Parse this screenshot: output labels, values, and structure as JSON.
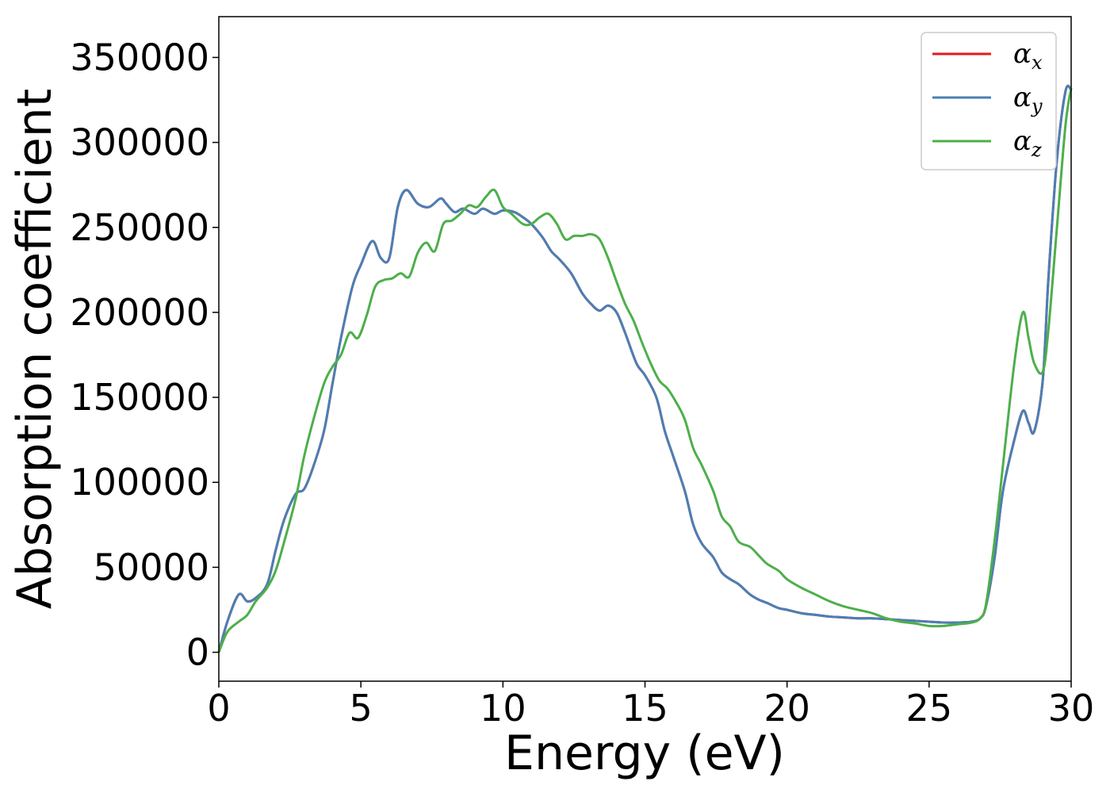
{
  "chart_data": {
    "type": "line",
    "xlabel": "Energy (eV)",
    "ylabel": "Absorption coefficient",
    "xlim": [
      0,
      30
    ],
    "ylim": [
      -17000,
      374000
    ],
    "xticks": [
      0,
      5,
      10,
      15,
      20,
      25,
      30
    ],
    "yticks": [
      0,
      50000,
      100000,
      150000,
      200000,
      250000,
      300000,
      350000
    ],
    "grid": false,
    "legend_position": "top-right",
    "series": [
      {
        "name": "α",
        "subscript": "x",
        "color": "#e41a1c",
        "x": [
          0,
          0.3,
          0.7,
          1.0,
          1.3,
          1.7,
          2.0,
          2.3,
          2.7,
          3.0,
          3.3,
          3.7,
          4.0,
          4.3,
          4.7,
          5.0,
          5.4,
          5.7,
          6.0,
          6.3,
          6.6,
          7.0,
          7.4,
          7.8,
          8.0,
          8.3,
          8.6,
          9.0,
          9.3,
          9.7,
          10.0,
          10.4,
          10.7,
          11.0,
          11.4,
          11.7,
          12.0,
          12.4,
          12.8,
          13.1,
          13.4,
          13.7,
          14.0,
          14.3,
          14.7,
          15.0,
          15.4,
          15.7,
          16.0,
          16.4,
          16.7,
          17.0,
          17.4,
          17.7,
          18.0,
          18.3,
          18.7,
          19.0,
          19.3,
          19.7,
          20.0,
          20.5,
          21.0,
          21.5,
          22.0,
          22.5,
          23.0,
          23.5,
          24.0,
          24.5,
          25.0,
          25.5,
          26.0,
          26.5,
          26.8,
          27.0,
          27.3,
          27.6,
          28.0,
          28.3,
          28.5,
          28.7,
          29.0,
          29.2,
          29.5,
          29.8,
          30.0
        ],
        "values": [
          0,
          18000,
          34000,
          30000,
          32000,
          40000,
          60000,
          78000,
          93000,
          96000,
          108000,
          130000,
          158000,
          185000,
          215000,
          228000,
          242000,
          232000,
          232000,
          262000,
          272000,
          264000,
          262000,
          267000,
          264000,
          259000,
          261000,
          258000,
          261000,
          258000,
          260000,
          259000,
          256000,
          252000,
          244000,
          236000,
          231000,
          223000,
          211000,
          205000,
          201000,
          204000,
          200000,
          188000,
          170000,
          163000,
          150000,
          130000,
          115000,
          95000,
          75000,
          64000,
          56000,
          47000,
          43000,
          40000,
          34000,
          31000,
          29000,
          26000,
          25000,
          23000,
          22000,
          21000,
          20500,
          20000,
          20000,
          19500,
          19000,
          18500,
          18000,
          17500,
          17500,
          18000,
          20000,
          27000,
          55000,
          95000,
          125000,
          142000,
          135000,
          130000,
          160000,
          220000,
          290000,
          330000,
          331000
        ]
      },
      {
        "name": "α",
        "subscript": "y",
        "color": "#4a7fb5",
        "x": [
          0,
          0.3,
          0.7,
          1.0,
          1.3,
          1.7,
          2.0,
          2.3,
          2.7,
          3.0,
          3.3,
          3.7,
          4.0,
          4.3,
          4.7,
          5.0,
          5.4,
          5.7,
          6.0,
          6.3,
          6.6,
          7.0,
          7.4,
          7.8,
          8.0,
          8.3,
          8.6,
          9.0,
          9.3,
          9.7,
          10.0,
          10.4,
          10.7,
          11.0,
          11.4,
          11.7,
          12.0,
          12.4,
          12.8,
          13.1,
          13.4,
          13.7,
          14.0,
          14.3,
          14.7,
          15.0,
          15.4,
          15.7,
          16.0,
          16.4,
          16.7,
          17.0,
          17.4,
          17.7,
          18.0,
          18.3,
          18.7,
          19.0,
          19.3,
          19.7,
          20.0,
          20.5,
          21.0,
          21.5,
          22.0,
          22.5,
          23.0,
          23.5,
          24.0,
          24.5,
          25.0,
          25.5,
          26.0,
          26.5,
          26.8,
          27.0,
          27.3,
          27.6,
          28.0,
          28.3,
          28.5,
          28.7,
          29.0,
          29.2,
          29.5,
          29.8,
          30.0
        ],
        "values": [
          0,
          18000,
          34000,
          30000,
          32000,
          40000,
          60000,
          78000,
          93000,
          96000,
          108000,
          130000,
          158000,
          185000,
          215000,
          228000,
          242000,
          232000,
          232000,
          262000,
          272000,
          264000,
          262000,
          267000,
          264000,
          259000,
          261000,
          258000,
          261000,
          258000,
          260000,
          259000,
          256000,
          252000,
          244000,
          236000,
          231000,
          223000,
          211000,
          205000,
          201000,
          204000,
          200000,
          188000,
          170000,
          163000,
          150000,
          130000,
          115000,
          95000,
          75000,
          64000,
          56000,
          47000,
          43000,
          40000,
          34000,
          31000,
          29000,
          26000,
          25000,
          23000,
          22000,
          21000,
          20500,
          20000,
          20000,
          19500,
          19000,
          18500,
          18000,
          17500,
          17500,
          18000,
          20000,
          27000,
          55000,
          95000,
          125000,
          142000,
          135000,
          130000,
          160000,
          220000,
          290000,
          330000,
          331000
        ]
      },
      {
        "name": "α",
        "subscript": "z",
        "color": "#4daf4a",
        "x": [
          0,
          0.3,
          0.7,
          1.0,
          1.3,
          1.7,
          2.0,
          2.3,
          2.7,
          3.0,
          3.3,
          3.7,
          4.0,
          4.3,
          4.6,
          4.9,
          5.2,
          5.5,
          5.8,
          6.1,
          6.4,
          6.7,
          7.0,
          7.3,
          7.6,
          7.9,
          8.2,
          8.5,
          8.8,
          9.1,
          9.4,
          9.7,
          10.0,
          10.3,
          10.7,
          11.0,
          11.3,
          11.6,
          11.9,
          12.2,
          12.5,
          12.8,
          13.1,
          13.4,
          13.7,
          14.0,
          14.3,
          14.6,
          14.9,
          15.2,
          15.5,
          15.8,
          16.1,
          16.4,
          16.7,
          17.0,
          17.4,
          17.7,
          18.0,
          18.3,
          18.7,
          19.0,
          19.3,
          19.7,
          20.0,
          20.5,
          21.0,
          21.5,
          22.0,
          22.5,
          23.0,
          23.5,
          24.0,
          24.5,
          25.0,
          25.5,
          26.0,
          26.5,
          26.8,
          27.0,
          27.3,
          27.6,
          28.0,
          28.3,
          28.5,
          28.7,
          29.0,
          29.2,
          29.5,
          29.8,
          30.0
        ],
        "values": [
          0,
          12000,
          18000,
          22000,
          30000,
          38000,
          48000,
          65000,
          90000,
          115000,
          135000,
          158000,
          168000,
          175000,
          188000,
          185000,
          198000,
          215000,
          219000,
          220000,
          223000,
          221000,
          235000,
          241000,
          236000,
          252000,
          254000,
          258000,
          263000,
          262000,
          268000,
          272000,
          262000,
          258000,
          252000,
          252000,
          256000,
          258000,
          252000,
          243000,
          245000,
          245000,
          246000,
          243000,
          232000,
          218000,
          205000,
          195000,
          182000,
          170000,
          160000,
          155000,
          147000,
          137000,
          120000,
          110000,
          95000,
          80000,
          74000,
          65000,
          62000,
          57000,
          52000,
          48000,
          43000,
          38000,
          34000,
          30000,
          27000,
          25000,
          23000,
          20000,
          18000,
          17000,
          15500,
          15500,
          16500,
          17500,
          20000,
          28000,
          65000,
          110000,
          170000,
          200000,
          185000,
          170000,
          165000,
          190000,
          250000,
          310000,
          332000
        ]
      }
    ]
  }
}
